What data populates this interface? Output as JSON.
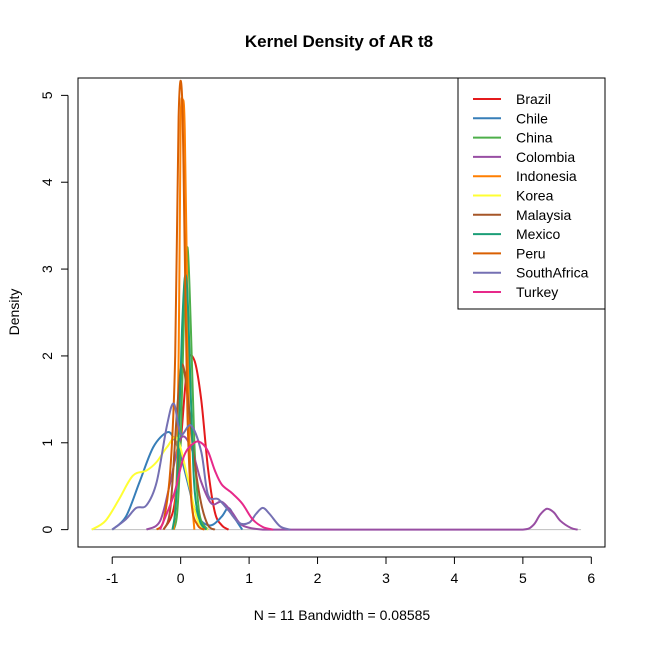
{
  "chart_data": {
    "type": "line",
    "title": "Kernel Density of AR t8",
    "xlabel": "N = 11   Bandwidth = 0.08585",
    "ylabel": "Density",
    "xlim": [
      -1.5,
      6.2
    ],
    "ylim": [
      -0.2,
      5.2
    ],
    "x_ticks": [
      -1,
      0,
      1,
      2,
      3,
      4,
      5,
      6
    ],
    "y_ticks": [
      0,
      1,
      2,
      3,
      4,
      5
    ],
    "x_tick_labels": [
      "-1",
      "0",
      "1",
      "2",
      "3",
      "4",
      "5",
      "6"
    ],
    "y_tick_labels": [
      "0",
      "1",
      "2",
      "3",
      "4",
      "5"
    ],
    "grid": false,
    "legend_position": "top-right",
    "baseline": {
      "from": -1.3,
      "to": 5.85,
      "y": 0,
      "color": "#bebebe"
    },
    "series": [
      {
        "name": "Brazil",
        "color": "#e41a1c",
        "x": [
          -0.25,
          -0.1,
          0.0,
          0.1,
          0.2,
          0.3,
          0.4,
          0.5,
          0.6,
          0.7
        ],
        "y": [
          0.0,
          0.25,
          1.0,
          1.9,
          1.95,
          1.5,
          0.7,
          0.2,
          0.05,
          0.0
        ]
      },
      {
        "name": "Chile",
        "color": "#377eb8",
        "x": [
          -1.0,
          -0.8,
          -0.6,
          -0.4,
          -0.2,
          -0.1,
          0.0,
          0.1,
          0.2,
          0.3,
          0.45,
          0.6,
          0.7,
          0.8,
          0.9
        ],
        "y": [
          0.0,
          0.15,
          0.55,
          0.95,
          1.12,
          1.05,
          0.85,
          0.55,
          0.25,
          0.1,
          0.05,
          0.15,
          0.25,
          0.12,
          0.0
        ]
      },
      {
        "name": "China",
        "color": "#4daf4a",
        "x": [
          -0.1,
          -0.05,
          0.0,
          0.05,
          0.1,
          0.15,
          0.2,
          0.25,
          0.3,
          0.4
        ],
        "y": [
          0.0,
          0.2,
          1.0,
          2.5,
          3.25,
          2.3,
          1.0,
          0.35,
          0.1,
          0.0
        ]
      },
      {
        "name": "Colombia",
        "color": "#984ea3",
        "x": [
          -0.5,
          -0.3,
          -0.15,
          0.0,
          0.15,
          0.3,
          0.45,
          0.6,
          0.75,
          0.9,
          1.2,
          1.6,
          2.5,
          3.5,
          4.5,
          5.0,
          5.15,
          5.25,
          5.35,
          5.45,
          5.55,
          5.7,
          5.8
        ],
        "y": [
          0.0,
          0.1,
          0.55,
          1.05,
          0.95,
          0.55,
          0.3,
          0.32,
          0.2,
          0.05,
          0.0,
          0.0,
          0.0,
          0.0,
          0.0,
          0.0,
          0.05,
          0.17,
          0.24,
          0.2,
          0.1,
          0.02,
          0.0
        ]
      },
      {
        "name": "Indonesia",
        "color": "#ff7f00",
        "x": [
          -0.1,
          -0.05,
          -0.02,
          0.0,
          0.03,
          0.06,
          0.1,
          0.14,
          0.2
        ],
        "y": [
          0.0,
          0.8,
          2.8,
          4.7,
          4.95,
          4.6,
          2.5,
          0.7,
          0.0
        ]
      },
      {
        "name": "Korea",
        "color": "#ffff33",
        "x": [
          -1.3,
          -1.1,
          -0.9,
          -0.7,
          -0.5,
          -0.35,
          -0.2,
          -0.05,
          0.1,
          0.25,
          0.4
        ],
        "y": [
          0.0,
          0.1,
          0.35,
          0.62,
          0.68,
          0.78,
          0.95,
          1.05,
          0.6,
          0.1,
          0.0
        ]
      },
      {
        "name": "Malaysia",
        "color": "#a65628",
        "x": [
          -0.25,
          -0.15,
          -0.05,
          0.02,
          0.1,
          0.2,
          0.3,
          0.4,
          0.5
        ],
        "y": [
          0.0,
          0.25,
          1.4,
          1.9,
          1.55,
          0.8,
          0.3,
          0.05,
          0.0
        ]
      },
      {
        "name": "Mexico",
        "color": "#1b9e77",
        "x": [
          -0.12,
          -0.07,
          -0.02,
          0.02,
          0.06,
          0.1,
          0.15,
          0.2,
          0.28,
          0.38
        ],
        "y": [
          0.0,
          0.3,
          1.3,
          2.3,
          2.9,
          2.7,
          1.5,
          0.5,
          0.1,
          0.0
        ]
      },
      {
        "name": "Peru",
        "color": "#d95f02",
        "x": [
          -0.35,
          -0.25,
          -0.15,
          -0.08,
          -0.03,
          0.02,
          0.06,
          0.1,
          0.16,
          0.25,
          0.35
        ],
        "y": [
          0.0,
          0.1,
          0.7,
          2.0,
          4.75,
          5.0,
          3.2,
          1.3,
          0.3,
          0.05,
          0.0
        ]
      },
      {
        "name": "SouthAfrica",
        "color": "#7570b3",
        "x": [
          -1.0,
          -0.8,
          -0.65,
          -0.5,
          -0.35,
          -0.2,
          -0.1,
          0.0,
          0.15,
          0.3,
          0.4,
          0.55,
          0.7,
          0.85,
          1.0,
          1.1,
          1.2,
          1.3,
          1.45,
          1.6
        ],
        "y": [
          0.0,
          0.12,
          0.25,
          0.28,
          0.55,
          1.2,
          1.45,
          1.1,
          1.2,
          0.9,
          0.4,
          0.35,
          0.22,
          0.08,
          0.08,
          0.18,
          0.25,
          0.18,
          0.04,
          0.0
        ]
      },
      {
        "name": "Turkey",
        "color": "#e7298a",
        "x": [
          -0.3,
          -0.1,
          0.05,
          0.2,
          0.3,
          0.4,
          0.5,
          0.6,
          0.75,
          0.9,
          1.05,
          1.2,
          1.35
        ],
        "y": [
          0.0,
          0.4,
          0.85,
          1.0,
          1.0,
          0.9,
          0.68,
          0.52,
          0.42,
          0.3,
          0.12,
          0.03,
          0.0
        ]
      }
    ]
  }
}
